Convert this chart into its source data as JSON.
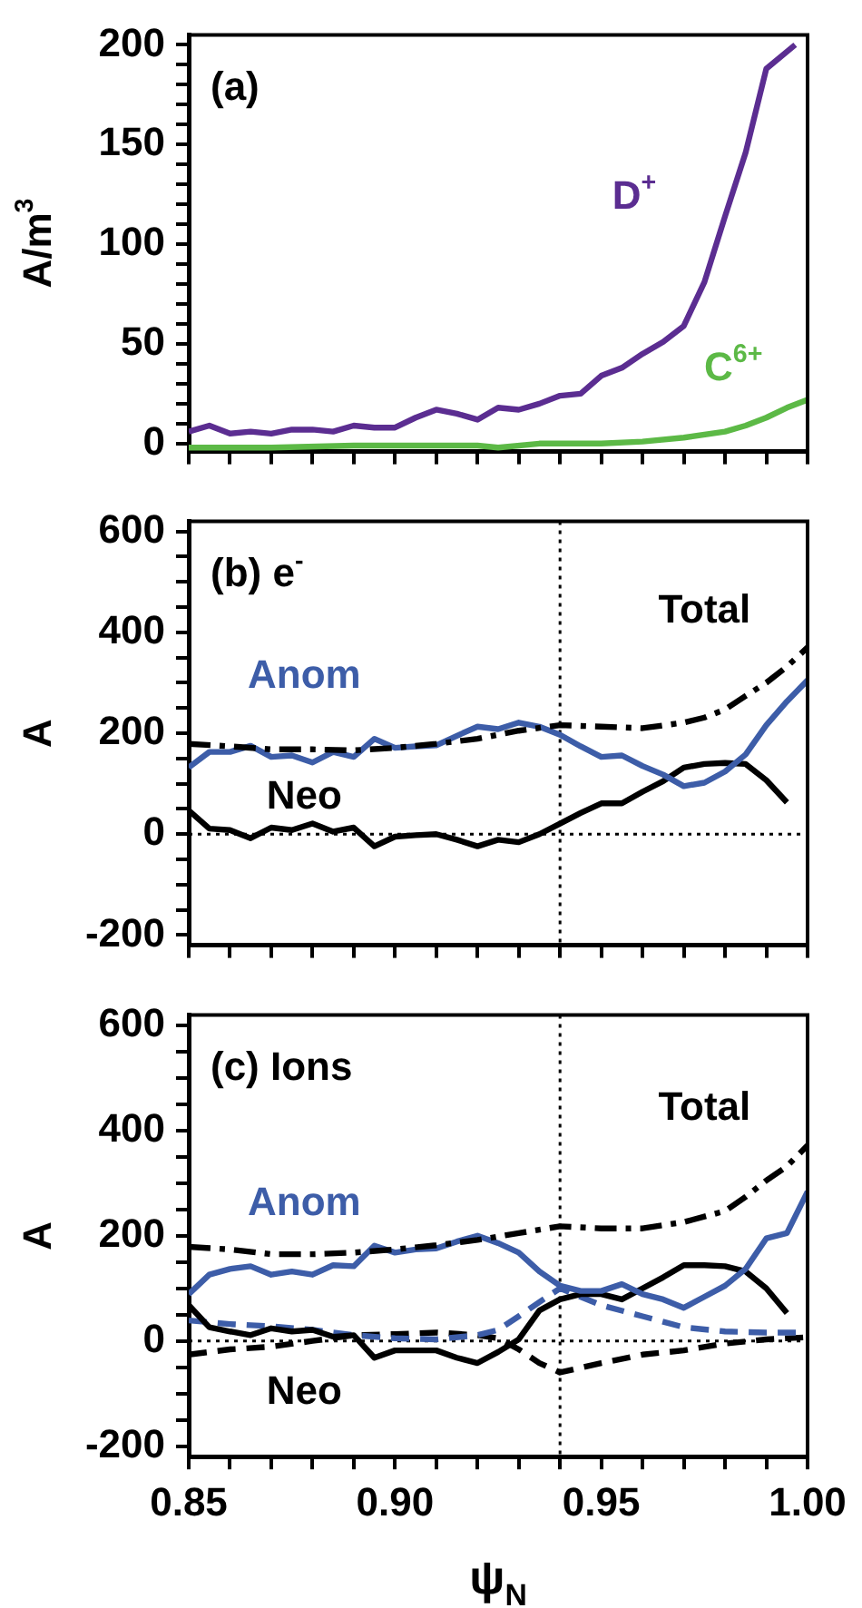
{
  "chart_data": [
    {
      "type": "line",
      "title": "(a)",
      "ylabel": "A/m$^{3}$",
      "xlim": [
        0.85,
        1.0
      ],
      "xticks": [
        0.85,
        {
          "value": 0.86,
          "label": null
        },
        {
          "value": 0.87,
          "label": null
        },
        {
          "value": 0.88,
          "label": null
        },
        {
          "value": 0.89,
          "label": null
        },
        0.9,
        {
          "value": 0.91,
          "label": null
        },
        {
          "value": 0.92,
          "label": null
        },
        {
          "value": 0.93,
          "label": null
        },
        {
          "value": 0.94,
          "label": null
        },
        0.95,
        {
          "value": 0.96,
          "label": null
        },
        {
          "value": 0.97,
          "label": null
        },
        {
          "value": 0.98,
          "label": null
        },
        {
          "value": 0.99,
          "label": null
        },
        1.0
      ],
      "ylim": [
        -4,
        205
      ],
      "yticks": [
        0,
        {
          "value": 10,
          "label": null
        },
        {
          "value": 20,
          "label": null
        },
        {
          "value": 30,
          "label": null
        },
        {
          "value": 40,
          "label": null
        },
        50,
        {
          "value": 60,
          "label": null
        },
        {
          "value": 70,
          "label": null
        },
        {
          "value": 80,
          "label": null
        },
        {
          "value": 90,
          "label": null
        },
        100,
        {
          "value": 110,
          "label": null
        },
        {
          "value": 120,
          "label": null
        },
        {
          "value": 130,
          "label": null
        },
        {
          "value": 140,
          "label": null
        },
        150,
        {
          "value": 160,
          "label": null
        },
        {
          "value": 170,
          "label": null
        },
        {
          "value": 180,
          "label": null
        },
        {
          "value": 190,
          "label": null
        },
        200
      ],
      "tick_labels": "y",
      "grid": false,
      "legend": false,
      "marker": "none",
      "series": [
        {
          "name": "D$^{+}$",
          "color": "#5b2d91",
          "line_style": "solid",
          "x": [
            0.85,
            0.855,
            0.86,
            0.865,
            0.87,
            0.875,
            0.88,
            0.885,
            0.89,
            0.895,
            0.9,
            0.905,
            0.91,
            0.915,
            0.92,
            0.925,
            0.93,
            0.935,
            0.94,
            0.945,
            0.95,
            0.955,
            0.96,
            0.965,
            0.97,
            0.975,
            0.98,
            0.985,
            0.99,
            0.997
          ],
          "values": [
            6,
            9,
            5,
            6,
            5,
            7,
            7,
            6,
            9,
            8,
            8,
            13,
            17,
            15,
            12,
            18,
            17,
            20,
            24,
            25,
            34,
            38,
            45,
            51,
            59,
            81,
            114,
            146,
            188,
            200
          ]
        },
        {
          "name": "C$^{6+}$",
          "color": "#5cb946",
          "line_style": "solid",
          "x": [
            0.85,
            0.87,
            0.89,
            0.91,
            0.92,
            0.925,
            0.935,
            0.95,
            0.96,
            0.97,
            0.98,
            0.985,
            0.99,
            0.995,
            1.0
          ],
          "values": [
            -2,
            -2,
            -1,
            -1,
            -1,
            -2,
            0,
            0,
            1,
            3,
            6,
            9,
            13,
            18,
            22
          ]
        }
      ]
    },
    {
      "type": "line",
      "title": "(b) e$^{-}$",
      "ylabel": "A",
      "xlim": [
        0.85,
        1.0
      ],
      "xticks": [
        0.85,
        {
          "value": 0.86,
          "label": null
        },
        {
          "value": 0.87,
          "label": null
        },
        {
          "value": 0.88,
          "label": null
        },
        {
          "value": 0.89,
          "label": null
        },
        0.9,
        {
          "value": 0.91,
          "label": null
        },
        {
          "value": 0.92,
          "label": null
        },
        {
          "value": 0.93,
          "label": null
        },
        {
          "value": 0.94,
          "label": null
        },
        0.95,
        {
          "value": 0.96,
          "label": null
        },
        {
          "value": 0.97,
          "label": null
        },
        {
          "value": 0.98,
          "label": null
        },
        {
          "value": 0.99,
          "label": null
        },
        1.0
      ],
      "ylim": [
        -220,
        620
      ],
      "yticks": [
        -200,
        {
          "value": -150,
          "label": null
        },
        {
          "value": -100,
          "label": null
        },
        {
          "value": -50,
          "label": null
        },
        0,
        {
          "value": 50,
          "label": null
        },
        {
          "value": 100,
          "label": null
        },
        {
          "value": 150,
          "label": null
        },
        200,
        {
          "value": 250,
          "label": null
        },
        {
          "value": 300,
          "label": null
        },
        {
          "value": 350,
          "label": null
        },
        400,
        {
          "value": 450,
          "label": null
        },
        {
          "value": 500,
          "label": null
        },
        {
          "value": 550,
          "label": null
        },
        600
      ],
      "tick_labels": "y",
      "grid": false,
      "legend": false,
      "marker": "none",
      "ref_lines": [
        {
          "axis": "x",
          "value": 0.94,
          "label": null,
          "line_style": "dotted"
        },
        {
          "axis": "y",
          "value": 0,
          "label": null,
          "line_style": "dotted"
        }
      ],
      "series": [
        {
          "name": "Total",
          "color": "#000000",
          "line_style": "dashdot",
          "x": [
            0.85,
            0.86,
            0.87,
            0.88,
            0.89,
            0.9,
            0.91,
            0.92,
            0.93,
            0.94,
            0.95,
            0.96,
            0.97,
            0.975,
            0.98,
            0.985,
            0.99,
            0.995,
            1.0
          ],
          "values": [
            179,
            174,
            168,
            168,
            166,
            171,
            179,
            189,
            205,
            216,
            213,
            210,
            221,
            231,
            247,
            274,
            300,
            332,
            370
          ]
        },
        {
          "name": "Anom",
          "color": "#3d5da8",
          "line_style": "solid",
          "x": [
            0.85,
            0.855,
            0.86,
            0.865,
            0.87,
            0.875,
            0.88,
            0.885,
            0.89,
            0.895,
            0.9,
            0.905,
            0.91,
            0.915,
            0.92,
            0.925,
            0.93,
            0.935,
            0.94,
            0.945,
            0.95,
            0.955,
            0.96,
            0.965,
            0.97,
            0.975,
            0.98,
            0.985,
            0.99,
            0.995,
            1.0
          ],
          "values": [
            132,
            163,
            163,
            175,
            153,
            156,
            142,
            163,
            153,
            189,
            171,
            174,
            176,
            195,
            213,
            208,
            221,
            213,
            197,
            174,
            153,
            156,
            135,
            118,
            95,
            102,
            124,
            158,
            216,
            263,
            305
          ]
        },
        {
          "name": "Neo",
          "color": "#000000",
          "line_style": "solid",
          "x": [
            0.85,
            0.855,
            0.86,
            0.865,
            0.87,
            0.875,
            0.88,
            0.885,
            0.89,
            0.895,
            0.9,
            0.905,
            0.91,
            0.915,
            0.92,
            0.925,
            0.93,
            0.935,
            0.94,
            0.945,
            0.95,
            0.955,
            0.96,
            0.965,
            0.97,
            0.975,
            0.98,
            0.985,
            0.99,
            0.995
          ],
          "values": [
            47,
            11,
            8,
            -8,
            13,
            8,
            21,
            5,
            13,
            -24,
            -5,
            -2,
            0,
            -11,
            -24,
            -11,
            -16,
            0,
            21,
            42,
            61,
            61,
            84,
            105,
            132,
            139,
            141,
            139,
            107,
            63
          ]
        }
      ]
    },
    {
      "type": "line",
      "title": "(c) Ions",
      "ylabel": "A",
      "xlabel": "ψ$_{N}$",
      "xlim": [
        0.85,
        1.0
      ],
      "xticks": [
        0.85,
        {
          "value": 0.86,
          "label": null
        },
        {
          "value": 0.87,
          "label": null
        },
        {
          "value": 0.88,
          "label": null
        },
        {
          "value": 0.89,
          "label": null
        },
        {
          "value": 0.9,
          "label": "0.90"
        },
        {
          "value": 0.91,
          "label": null
        },
        {
          "value": 0.92,
          "label": null
        },
        {
          "value": 0.93,
          "label": null
        },
        {
          "value": 0.94,
          "label": null
        },
        0.95,
        {
          "value": 0.96,
          "label": null
        },
        {
          "value": 0.97,
          "label": null
        },
        {
          "value": 0.98,
          "label": null
        },
        {
          "value": 0.99,
          "label": null
        },
        {
          "value": 1.0,
          "label": "1.00"
        }
      ],
      "ylim": [
        -220,
        620
      ],
      "yticks": [
        -200,
        {
          "value": -150,
          "label": null
        },
        {
          "value": -100,
          "label": null
        },
        {
          "value": -50,
          "label": null
        },
        0,
        {
          "value": 50,
          "label": null
        },
        {
          "value": 100,
          "label": null
        },
        {
          "value": 150,
          "label": null
        },
        200,
        {
          "value": 250,
          "label": null
        },
        {
          "value": 300,
          "label": null
        },
        {
          "value": 350,
          "label": null
        },
        400,
        {
          "value": 450,
          "label": null
        },
        {
          "value": 500,
          "label": null
        },
        {
          "value": 550,
          "label": null
        },
        600
      ],
      "grid": false,
      "legend": false,
      "marker": "none",
      "ref_lines": [
        {
          "axis": "x",
          "value": 0.94,
          "label": null,
          "line_style": "dotted"
        },
        {
          "axis": "y",
          "value": 0,
          "label": null,
          "line_style": "dotted"
        }
      ],
      "series": [
        {
          "name": "Total",
          "color": "#000000",
          "line_style": "dashdot",
          "x": [
            0.85,
            0.86,
            0.87,
            0.88,
            0.89,
            0.9,
            0.91,
            0.92,
            0.93,
            0.94,
            0.95,
            0.96,
            0.97,
            0.98,
            0.985,
            0.99,
            0.995,
            1.0
          ],
          "values": [
            179,
            174,
            165,
            165,
            168,
            174,
            182,
            192,
            205,
            218,
            214,
            214,
            226,
            247,
            274,
            305,
            332,
            372
          ]
        },
        {
          "name": "Anom",
          "color": "#3d5da8",
          "line_style": "solid",
          "x": [
            0.85,
            0.855,
            0.86,
            0.865,
            0.87,
            0.875,
            0.88,
            0.885,
            0.89,
            0.895,
            0.9,
            0.905,
            0.91,
            0.915,
            0.92,
            0.925,
            0.93,
            0.935,
            0.94,
            0.945,
            0.95,
            0.955,
            0.96,
            0.965,
            0.97,
            0.975,
            0.98,
            0.985,
            0.99,
            0.995,
            1.0
          ],
          "values": [
            89,
            126,
            137,
            142,
            126,
            132,
            126,
            144,
            142,
            181,
            168,
            174,
            176,
            189,
            200,
            186,
            168,
            132,
            105,
            95,
            95,
            108,
            89,
            79,
            63,
            84,
            105,
            137,
            195,
            205,
            284
          ]
        },
        {
          "name": "Neo",
          "color": "#000000",
          "line_style": "solid",
          "x": [
            0.85,
            0.855,
            0.86,
            0.865,
            0.87,
            0.875,
            0.88,
            0.885,
            0.89,
            0.895,
            0.9,
            0.905,
            0.91,
            0.915,
            0.92,
            0.925,
            0.93,
            0.935,
            0.94,
            0.945,
            0.95,
            0.955,
            0.96,
            0.965,
            0.97,
            0.975,
            0.98,
            0.985,
            0.99,
            0.995
          ],
          "values": [
            68,
            26,
            18,
            11,
            24,
            18,
            21,
            8,
            11,
            -32,
            -18,
            -18,
            -18,
            -32,
            -42,
            -21,
            3,
            58,
            79,
            89,
            89,
            79,
            100,
            121,
            144,
            144,
            142,
            132,
            100,
            53
          ]
        },
        {
          "color": "#3d5da8",
          "line_style": "dashed",
          "x": [
            0.85,
            0.86,
            0.87,
            0.88,
            0.89,
            0.9,
            0.91,
            0.92,
            0.925,
            0.93,
            0.935,
            0.94,
            0.95,
            0.96,
            0.97,
            0.98,
            0.99,
            1.0
          ],
          "values": [
            39,
            32,
            28,
            21,
            11,
            5,
            3,
            11,
            21,
            47,
            74,
            100,
            68,
            47,
            26,
            18,
            16,
            16
          ]
        },
        {
          "color": "#000000",
          "line_style": "dashed",
          "x": [
            0.85,
            0.86,
            0.87,
            0.88,
            0.89,
            0.9,
            0.91,
            0.92,
            0.925,
            0.93,
            0.935,
            0.94,
            0.95,
            0.96,
            0.97,
            0.98,
            0.99,
            1.0
          ],
          "values": [
            -26,
            -16,
            -11,
            0,
            11,
            13,
            16,
            11,
            5,
            -16,
            -42,
            -60,
            -42,
            -26,
            -18,
            -5,
            3,
            7
          ]
        }
      ]
    }
  ]
}
